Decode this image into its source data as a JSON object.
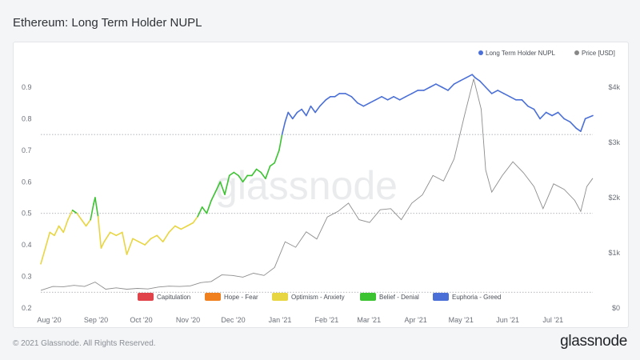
{
  "title": "Ethereum: Long Term Holder NUPL",
  "footer": "© 2021 Glassnode. All Rights Reserved.",
  "brand": "glassnode",
  "watermark": "glassnode",
  "chart_data": {
    "type": "line",
    "title": "Ethereum: Long Term Holder NUPL",
    "x_start": "2020-07-28",
    "x_end": "2021-07-29",
    "x_ticks": [
      "Aug '20",
      "Sep '20",
      "Oct '20",
      "Nov '20",
      "Dec '20",
      "Jan '21",
      "Feb '21",
      "Mar '21",
      "Apr '21",
      "May '21",
      "Jun '21",
      "Jul '21"
    ],
    "y_left": {
      "ticks": [
        "0.2",
        "0.3",
        "0.4",
        "0.5",
        "0.6",
        "0.7",
        "0.8",
        "0.9"
      ],
      "range": [
        0.2,
        0.9
      ]
    },
    "y_right": {
      "ticks": [
        "$0",
        "$1k",
        "$2k",
        "$3k",
        "$4k"
      ],
      "range": [
        0,
        4000
      ],
      "label_unit": "USD"
    },
    "reference_lines": [
      0.25,
      0.5,
      0.75
    ],
    "legend_top": [
      {
        "name": "Long Term Holder NUPL",
        "color": "#4a6fd6"
      },
      {
        "name": "Price [USD]",
        "color": "#888888"
      }
    ],
    "legend_zones": [
      {
        "name": "Capitulation",
        "color": "#e0434a"
      },
      {
        "name": "Hope - Fear",
        "color": "#f07f1e"
      },
      {
        "name": "Optimism - Anxiety",
        "color": "#e8d542"
      },
      {
        "name": "Belief - Denial",
        "color": "#3cc331"
      },
      {
        "name": "Euphoria - Greed",
        "color": "#4a6fd6"
      }
    ],
    "series": [
      {
        "name": "Long Term Holder NUPL",
        "axis": "left",
        "points": [
          [
            "2020-07-28",
            0.34
          ],
          [
            "2020-07-31",
            0.39
          ],
          [
            "2020-08-03",
            0.44
          ],
          [
            "2020-08-06",
            0.43
          ],
          [
            "2020-08-09",
            0.46
          ],
          [
            "2020-08-12",
            0.44
          ],
          [
            "2020-08-15",
            0.48
          ],
          [
            "2020-08-18",
            0.51
          ],
          [
            "2020-08-21",
            0.5
          ],
          [
            "2020-08-24",
            0.48
          ],
          [
            "2020-08-27",
            0.46
          ],
          [
            "2020-08-30",
            0.48
          ],
          [
            "2020-09-01",
            0.53
          ],
          [
            "2020-09-02",
            0.55
          ],
          [
            "2020-09-04",
            0.49
          ],
          [
            "2020-09-06",
            0.39
          ],
          [
            "2020-09-08",
            0.41
          ],
          [
            "2020-09-12",
            0.44
          ],
          [
            "2020-09-16",
            0.43
          ],
          [
            "2020-09-20",
            0.44
          ],
          [
            "2020-09-23",
            0.37
          ],
          [
            "2020-09-27",
            0.42
          ],
          [
            "2020-10-01",
            0.41
          ],
          [
            "2020-10-05",
            0.4
          ],
          [
            "2020-10-09",
            0.42
          ],
          [
            "2020-10-13",
            0.43
          ],
          [
            "2020-10-17",
            0.41
          ],
          [
            "2020-10-21",
            0.44
          ],
          [
            "2020-10-25",
            0.46
          ],
          [
            "2020-10-29",
            0.45
          ],
          [
            "2020-11-02",
            0.46
          ],
          [
            "2020-11-06",
            0.47
          ],
          [
            "2020-11-09",
            0.49
          ],
          [
            "2020-11-12",
            0.52
          ],
          [
            "2020-11-15",
            0.5
          ],
          [
            "2020-11-18",
            0.54
          ],
          [
            "2020-11-21",
            0.57
          ],
          [
            "2020-11-24",
            0.6
          ],
          [
            "2020-11-27",
            0.56
          ],
          [
            "2020-11-30",
            0.62
          ],
          [
            "2020-12-03",
            0.63
          ],
          [
            "2020-12-06",
            0.62
          ],
          [
            "2020-12-09",
            0.6
          ],
          [
            "2020-12-12",
            0.62
          ],
          [
            "2020-12-15",
            0.62
          ],
          [
            "2020-12-18",
            0.64
          ],
          [
            "2020-12-21",
            0.63
          ],
          [
            "2020-12-24",
            0.61
          ],
          [
            "2020-12-27",
            0.65
          ],
          [
            "2020-12-30",
            0.66
          ],
          [
            "2021-01-02",
            0.7
          ],
          [
            "2021-01-04",
            0.75
          ],
          [
            "2021-01-06",
            0.79
          ],
          [
            "2021-01-08",
            0.82
          ],
          [
            "2021-01-11",
            0.8
          ],
          [
            "2021-01-14",
            0.82
          ],
          [
            "2021-01-17",
            0.83
          ],
          [
            "2021-01-20",
            0.81
          ],
          [
            "2021-01-23",
            0.84
          ],
          [
            "2021-01-26",
            0.82
          ],
          [
            "2021-01-29",
            0.84
          ],
          [
            "2021-02-02",
            0.86
          ],
          [
            "2021-02-05",
            0.87
          ],
          [
            "2021-02-08",
            0.87
          ],
          [
            "2021-02-11",
            0.88
          ],
          [
            "2021-02-15",
            0.88
          ],
          [
            "2021-02-19",
            0.87
          ],
          [
            "2021-02-23",
            0.85
          ],
          [
            "2021-02-27",
            0.84
          ],
          [
            "2021-03-03",
            0.85
          ],
          [
            "2021-03-07",
            0.86
          ],
          [
            "2021-03-11",
            0.87
          ],
          [
            "2021-03-15",
            0.86
          ],
          [
            "2021-03-19",
            0.87
          ],
          [
            "2021-03-23",
            0.86
          ],
          [
            "2021-03-27",
            0.87
          ],
          [
            "2021-03-31",
            0.88
          ],
          [
            "2021-04-04",
            0.89
          ],
          [
            "2021-04-08",
            0.89
          ],
          [
            "2021-04-12",
            0.9
          ],
          [
            "2021-04-16",
            0.91
          ],
          [
            "2021-04-20",
            0.9
          ],
          [
            "2021-04-24",
            0.89
          ],
          [
            "2021-04-28",
            0.91
          ],
          [
            "2021-05-02",
            0.92
          ],
          [
            "2021-05-06",
            0.93
          ],
          [
            "2021-05-10",
            0.94
          ],
          [
            "2021-05-12",
            0.93
          ],
          [
            "2021-05-15",
            0.92
          ],
          [
            "2021-05-19",
            0.9
          ],
          [
            "2021-05-23",
            0.88
          ],
          [
            "2021-05-27",
            0.89
          ],
          [
            "2021-05-31",
            0.88
          ],
          [
            "2021-06-04",
            0.87
          ],
          [
            "2021-06-08",
            0.86
          ],
          [
            "2021-06-12",
            0.86
          ],
          [
            "2021-06-16",
            0.84
          ],
          [
            "2021-06-20",
            0.83
          ],
          [
            "2021-06-24",
            0.8
          ],
          [
            "2021-06-28",
            0.82
          ],
          [
            "2021-07-02",
            0.81
          ],
          [
            "2021-07-06",
            0.82
          ],
          [
            "2021-07-10",
            0.8
          ],
          [
            "2021-07-14",
            0.79
          ],
          [
            "2021-07-18",
            0.77
          ],
          [
            "2021-07-21",
            0.76
          ],
          [
            "2021-07-24",
            0.8
          ],
          [
            "2021-07-29",
            0.81
          ]
        ]
      },
      {
        "name": "Price [USD]",
        "axis": "right",
        "points": [
          [
            "2020-07-28",
            320
          ],
          [
            "2020-08-05",
            390
          ],
          [
            "2020-08-12",
            385
          ],
          [
            "2020-08-19",
            410
          ],
          [
            "2020-08-26",
            390
          ],
          [
            "2020-09-02",
            470
          ],
          [
            "2020-09-09",
            340
          ],
          [
            "2020-09-16",
            365
          ],
          [
            "2020-09-23",
            340
          ],
          [
            "2020-09-30",
            355
          ],
          [
            "2020-10-07",
            345
          ],
          [
            "2020-10-14",
            380
          ],
          [
            "2020-10-21",
            395
          ],
          [
            "2020-10-28",
            390
          ],
          [
            "2020-11-04",
            400
          ],
          [
            "2020-11-11",
            460
          ],
          [
            "2020-11-18",
            480
          ],
          [
            "2020-11-25",
            600
          ],
          [
            "2020-12-02",
            590
          ],
          [
            "2020-12-09",
            560
          ],
          [
            "2020-12-16",
            630
          ],
          [
            "2020-12-23",
            590
          ],
          [
            "2020-12-30",
            735
          ],
          [
            "2021-01-06",
            1200
          ],
          [
            "2021-01-13",
            1100
          ],
          [
            "2021-01-20",
            1380
          ],
          [
            "2021-01-27",
            1250
          ],
          [
            "2021-02-03",
            1650
          ],
          [
            "2021-02-10",
            1750
          ],
          [
            "2021-02-17",
            1900
          ],
          [
            "2021-02-24",
            1600
          ],
          [
            "2021-03-03",
            1550
          ],
          [
            "2021-03-10",
            1780
          ],
          [
            "2021-03-17",
            1800
          ],
          [
            "2021-03-24",
            1600
          ],
          [
            "2021-03-31",
            1900
          ],
          [
            "2021-04-07",
            2050
          ],
          [
            "2021-04-14",
            2400
          ],
          [
            "2021-04-21",
            2300
          ],
          [
            "2021-04-28",
            2700
          ],
          [
            "2021-05-05",
            3500
          ],
          [
            "2021-05-11",
            4150
          ],
          [
            "2021-05-16",
            3600
          ],
          [
            "2021-05-19",
            2500
          ],
          [
            "2021-05-23",
            2100
          ],
          [
            "2021-05-30",
            2400
          ],
          [
            "2021-06-06",
            2650
          ],
          [
            "2021-06-13",
            2450
          ],
          [
            "2021-06-20",
            2200
          ],
          [
            "2021-06-26",
            1800
          ],
          [
            "2021-07-03",
            2250
          ],
          [
            "2021-07-10",
            2150
          ],
          [
            "2021-07-17",
            1950
          ],
          [
            "2021-07-21",
            1750
          ],
          [
            "2021-07-25",
            2200
          ],
          [
            "2021-07-29",
            2350
          ]
        ]
      }
    ]
  }
}
